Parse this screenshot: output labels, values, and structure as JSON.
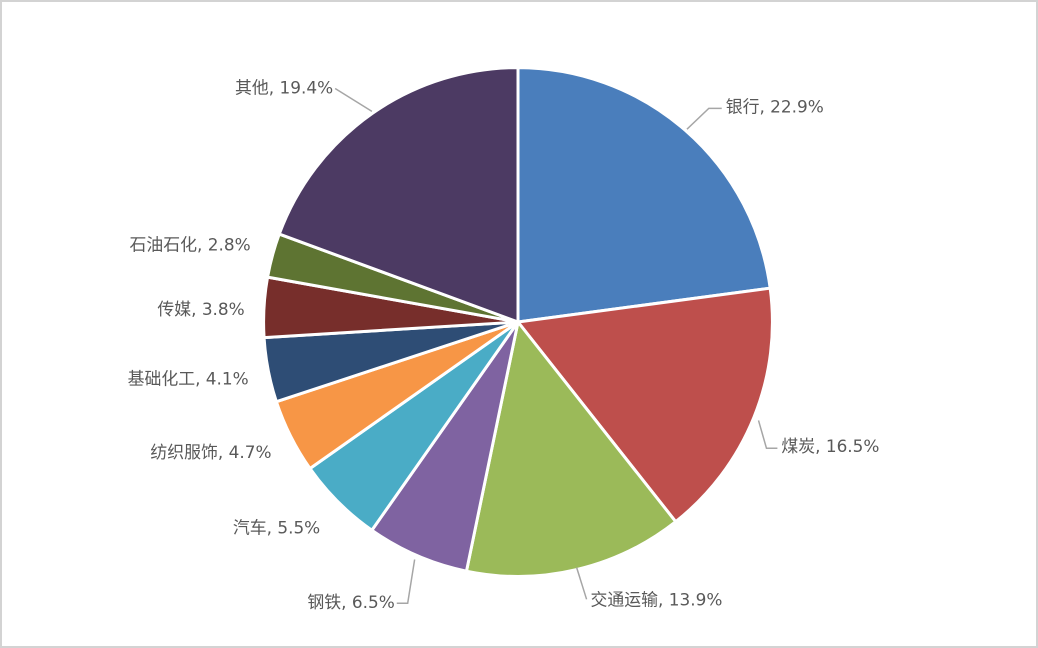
{
  "chart_data": {
    "type": "pie",
    "title": "",
    "unit": "%",
    "legend": "none",
    "start_angle_deg": -90,
    "direction": "clockwise",
    "label_style": "outside: category name, percent value",
    "slices": [
      {
        "name": "银行",
        "value": 22.9,
        "color": "#4A7EBC",
        "label": "银行, 22.9%"
      },
      {
        "name": "煤炭",
        "value": 16.5,
        "color": "#BE4F4C",
        "label": "煤炭, 16.5%"
      },
      {
        "name": "交通运输",
        "value": 13.9,
        "color": "#9BBA59",
        "label": "交通运输, 13.9%"
      },
      {
        "name": "钢铁",
        "value": 6.5,
        "color": "#7F63A1",
        "label": "钢铁, 6.5%"
      },
      {
        "name": "汽车",
        "value": 5.5,
        "color": "#4AACC6",
        "label": "汽车, 5.5%"
      },
      {
        "name": "纺织服饰",
        "value": 4.7,
        "color": "#F79646",
        "label": "纺织服饰, 4.7%"
      },
      {
        "name": "基础化工",
        "value": 4.1,
        "color": "#2E4D75",
        "label": "基础化工, 4.1%"
      },
      {
        "name": "传媒",
        "value": 3.8,
        "color": "#772E2B",
        "label": "传媒, 3.8%"
      },
      {
        "name": "石油石化",
        "value": 2.8,
        "color": "#5E7432",
        "label": "石油石化, 2.8%"
      },
      {
        "name": "其他",
        "value": 19.4,
        "color": "#4C3A63",
        "label": "其他, 19.4%"
      }
    ],
    "colors_meaning": {
      "slice_border": "#FFFFFF",
      "label_text": "#595959",
      "leader_line": "#A6A6A6",
      "frame_border": "#D3D3D3",
      "background": "#FFFFFF"
    }
  }
}
